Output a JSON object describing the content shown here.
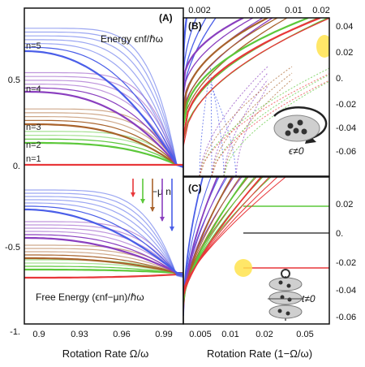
{
  "chart_data": [
    {
      "id": "A",
      "type": "line",
      "panel_label": "(A)",
      "xlabel": "Rotation Rate Ω/ω",
      "x_ticks": [
        "0.9",
        "0.93",
        "0.96",
        "0.99"
      ],
      "xlim": [
        0.885,
        1.0
      ],
      "y_ticks_upper": [
        "0.5",
        "0."
      ],
      "y_ticks_lower": [
        "-0.5",
        "-1."
      ],
      "annotation_upper": "Energy ϵnf/ℏω",
      "annotation_lower": "Free Energy (ϵnf−μn)/ℏω",
      "shift_label": "−μ n",
      "level_labels": [
        "n=5",
        "n=4",
        "n=3",
        "n=2",
        "n=1"
      ],
      "series": [
        {
          "name": "n=1",
          "color": "#e8373a",
          "energy_start": 0.0,
          "free_start": -0.69
        },
        {
          "name": "n=2",
          "color": "#5cc83a",
          "energy_start": 0.17,
          "free_start": -0.64
        },
        {
          "name": "n=3",
          "color": "#a8622b",
          "energy_start": 0.33,
          "free_start": -0.57
        },
        {
          "name": "n=4",
          "color": "#8a3fbf",
          "energy_start": 0.5,
          "free_start": -0.45
        },
        {
          "name": "n=5",
          "color": "#4a5ee8",
          "energy_start": 0.67,
          "free_start": -0.33
        }
      ]
    },
    {
      "id": "B",
      "type": "line",
      "panel_label": "(B)",
      "x_ticks_top": [
        "0.002",
        "0.005",
        "0.01",
        "0.02"
      ],
      "y_ticks": [
        "0.04",
        "0.02",
        "0.",
        "-0.02",
        "-0.04",
        "-0.06"
      ],
      "ylim": [
        -0.07,
        0.05
      ],
      "inset_label": "ϵ≠0"
    },
    {
      "id": "C",
      "type": "line",
      "panel_label": "(C)",
      "xlabel": "Rotation Rate (1−Ω/ω)",
      "x_ticks": [
        "0.005",
        "0.01",
        "0.02",
        "0.05"
      ],
      "y_ticks": [
        "0.02",
        "0.",
        "-0.02",
        "-0.04",
        "-0.06"
      ],
      "ylim": [
        -0.07,
        0.035
      ],
      "inset_label": "t≠0"
    }
  ],
  "colors": {
    "red": "#e8373a",
    "green": "#5cc83a",
    "brown": "#a8622b",
    "purple": "#8a3fbf",
    "blue": "#4a5ee8",
    "highlight": "#ffe34d"
  }
}
